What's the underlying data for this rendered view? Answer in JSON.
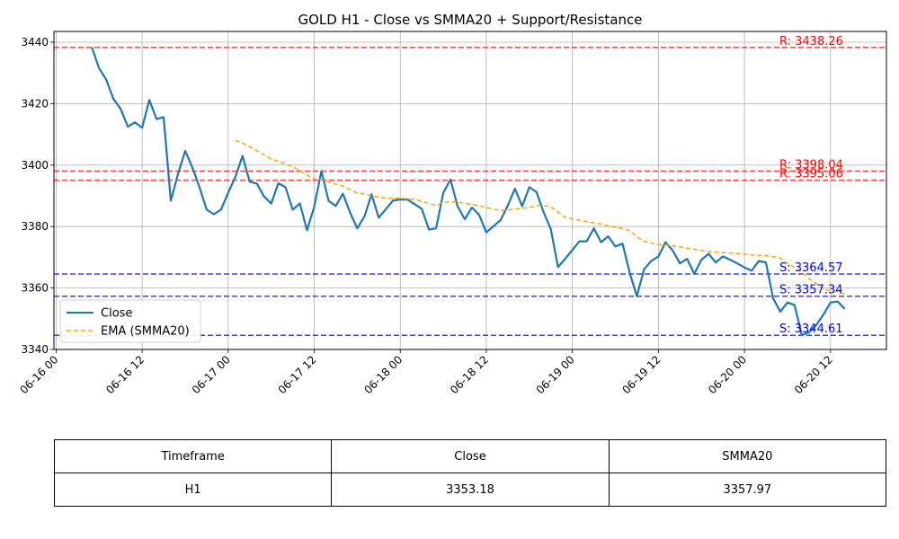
{
  "chart_data": {
    "type": "line",
    "title": "GOLD H1 - Close vs SMMA20 + Support/Resistance",
    "xlabel": "",
    "ylabel": "",
    "x_ticks": [
      "06-16 00",
      "06-16 12",
      "06-17 00",
      "06-17 12",
      "06-18 00",
      "06-18 12",
      "06-19 00",
      "06-19 12",
      "06-20 00",
      "06-20 12"
    ],
    "x_tick_hours": [
      0,
      12,
      24,
      36,
      48,
      60,
      72,
      84,
      96,
      108
    ],
    "xlim_hours": [
      -0.3,
      115.8
    ],
    "y_ticks": [
      3340,
      3360,
      3380,
      3400,
      3420,
      3440
    ],
    "ylim": [
      3340,
      3443.5
    ],
    "grid": true,
    "legend_position": "center-left",
    "series": [
      {
        "name": "Close",
        "color": "#1f77b4",
        "style": "solid",
        "x_hours": [
          5,
          6,
          7,
          8,
          9,
          10,
          11,
          12,
          13,
          14,
          15,
          16,
          17,
          18,
          19,
          20,
          21,
          22,
          23,
          24,
          25,
          26,
          27,
          28,
          29,
          30,
          31,
          32,
          33,
          34,
          35,
          36,
          37,
          38,
          39,
          40,
          41,
          42,
          43,
          44,
          45,
          47,
          48,
          49,
          51,
          52,
          53,
          54,
          55,
          56,
          57,
          58,
          59,
          60,
          62,
          63,
          64,
          65,
          66,
          67,
          68,
          69,
          70,
          71,
          72,
          73,
          74,
          75,
          76,
          77,
          78,
          79,
          80,
          81,
          82,
          83,
          84,
          85,
          86,
          87,
          88,
          89,
          90,
          91,
          92,
          93,
          94,
          95,
          96,
          97,
          98,
          99,
          100,
          101,
          102,
          103,
          104,
          105,
          106,
          107,
          108,
          109,
          110
        ],
        "values": [
          3438.3,
          3431.5,
          3427.8,
          3421.5,
          3418.3,
          3412.5,
          3413.9,
          3412.2,
          3421.2,
          3415.0,
          3415.6,
          3388.4,
          3397.1,
          3404.6,
          3399.3,
          3392.8,
          3385.5,
          3384.0,
          3385.5,
          3391.0,
          3396.1,
          3403.0,
          3394.6,
          3394.0,
          3389.8,
          3387.5,
          3394.1,
          3392.8,
          3385.5,
          3387.5,
          3378.8,
          3386.4,
          3398.1,
          3388.4,
          3386.7,
          3390.7,
          3384.6,
          3379.4,
          3383.3,
          3390.5,
          3382.9,
          3388.5,
          3388.8,
          3388.8,
          3385.8,
          3379.0,
          3379.4,
          3391.0,
          3395.3,
          3386.6,
          3382.4,
          3386.2,
          3383.8,
          3378.1,
          3382.1,
          3386.9,
          3392.3,
          3386.6,
          3392.8,
          3391.2,
          3384.6,
          3379.2,
          3366.8,
          3369.5,
          3372.4,
          3375.2,
          3375.2,
          3379.4,
          3374.9,
          3376.8,
          3373.5,
          3374.4,
          3364.9,
          3357.3,
          3366.1,
          3368.8,
          3370.3,
          3374.9,
          3372.2,
          3368.0,
          3369.5,
          3364.6,
          3369.2,
          3371.1,
          3368.3,
          3370.3,
          3369.2,
          3368.0,
          3366.7,
          3365.6,
          3368.8,
          3368.3,
          3356.6,
          3352.3,
          3355.3,
          3354.4,
          3344.6,
          3345.6,
          3347.9,
          3351.3,
          3355.3,
          3355.6,
          3353.2
        ]
      },
      {
        "name": "EMA (SMMA20)",
        "color": "#ffa500",
        "style": "dashed",
        "x_hours": [
          25,
          26,
          27,
          28,
          29,
          30,
          31,
          32,
          33,
          34,
          35,
          36,
          37,
          38,
          39,
          40,
          41,
          42,
          43,
          44,
          45,
          46,
          47,
          48,
          49,
          50,
          51,
          52,
          53,
          54,
          55,
          56,
          57,
          58,
          59,
          60,
          61,
          62,
          63,
          64,
          65,
          66,
          67,
          68,
          69,
          70,
          71,
          72,
          73,
          74,
          75,
          76,
          77,
          78,
          79,
          80,
          81,
          82,
          83,
          84,
          85,
          86,
          87,
          88,
          89,
          90,
          91,
          92,
          93,
          94,
          95,
          96,
          97,
          98,
          99,
          100,
          101,
          102,
          103,
          104,
          105,
          106,
          107,
          108,
          109,
          110
        ],
        "values": [
          3408.0,
          3407.2,
          3406.0,
          3404.7,
          3403.3,
          3402.0,
          3401.2,
          3400.4,
          3399.4,
          3398.2,
          3396.8,
          3395.4,
          3395.3,
          3394.5,
          3393.8,
          3393.2,
          3392.0,
          3390.9,
          3390.6,
          3390.0,
          3389.6,
          3389.3,
          3389.2,
          3389.2,
          3389.1,
          3388.8,
          3388.2,
          3387.5,
          3386.9,
          3387.8,
          3388.1,
          3388.0,
          3387.5,
          3387.2,
          3386.8,
          3386.2,
          3385.6,
          3385.3,
          3385.4,
          3385.7,
          3385.9,
          3386.2,
          3386.8,
          3386.8,
          3386.4,
          3384.7,
          3383.0,
          3382.5,
          3382.1,
          3381.6,
          3381.2,
          3380.8,
          3380.3,
          3379.8,
          3379.3,
          3378.7,
          3376.7,
          3375.2,
          3374.6,
          3374.2,
          3374.0,
          3373.7,
          3373.4,
          3373.0,
          3372.6,
          3372.2,
          3371.9,
          3371.7,
          3371.5,
          3371.4,
          3371.2,
          3371.0,
          3370.8,
          3370.6,
          3370.5,
          3370.2,
          3369.7,
          3368.0,
          3366.7,
          3365.2,
          3363.0,
          3361.5,
          3359.8,
          3359.1,
          3358.8,
          3357.97
        ]
      }
    ],
    "levels": [
      {
        "kind": "resistance",
        "value": 3438.26,
        "label": "R: 3438.26",
        "color": "#ff0000"
      },
      {
        "kind": "resistance",
        "value": 3398.04,
        "label": "R: 3398.04",
        "color": "#ff0000"
      },
      {
        "kind": "resistance",
        "value": 3395.06,
        "label": "R: 3395.06",
        "color": "#ff0000"
      },
      {
        "kind": "support",
        "value": 3364.57,
        "label": "S: 3364.57",
        "color": "#0000ff"
      },
      {
        "kind": "support",
        "value": 3357.34,
        "label": "S: 3357.34",
        "color": "#0000ff"
      },
      {
        "kind": "support",
        "value": 3344.61,
        "label": "S: 3344.61",
        "color": "#0000ff"
      }
    ]
  },
  "table": {
    "headers": [
      "Timeframe",
      "Close",
      "SMMA20"
    ],
    "rows": [
      [
        "H1",
        "3353.18",
        "3357.97"
      ]
    ]
  }
}
